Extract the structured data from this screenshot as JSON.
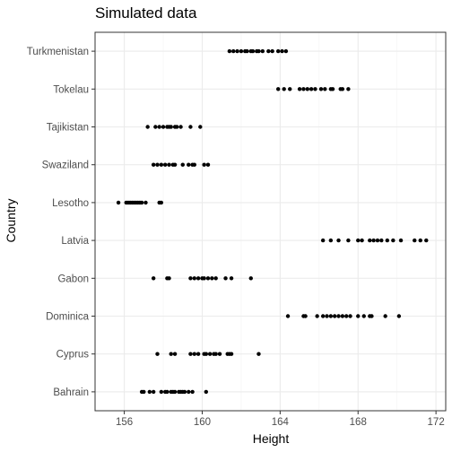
{
  "chart_data": {
    "type": "scatter",
    "title": "Simulated data",
    "xlabel": "Height",
    "ylabel": "Country",
    "xlim": [
      154.5,
      172.5
    ],
    "xticks": [
      156,
      160,
      164,
      168,
      172
    ],
    "xtick_labels": [
      "156",
      "160",
      "164",
      "168",
      "172"
    ],
    "grid": true,
    "categories": [
      "Bahrain",
      "Cyprus",
      "Dominica",
      "Gabon",
      "Latvia",
      "Lesotho",
      "Swaziland",
      "Tajikistan",
      "Tokelau",
      "Turkmenistan"
    ],
    "series": [
      {
        "category": "Bahrain",
        "x": [
          156.9,
          157.0,
          157.3,
          157.5,
          157.9,
          158.1,
          158.2,
          158.4,
          158.5,
          158.6,
          158.8,
          158.9,
          159.0,
          159.1,
          159.3,
          159.5,
          160.2
        ]
      },
      {
        "category": "Cyprus",
        "x": [
          157.7,
          158.4,
          158.6,
          159.4,
          159.6,
          159.8,
          160.1,
          160.2,
          160.4,
          160.6,
          160.7,
          160.9,
          161.3,
          161.4,
          161.5,
          162.9
        ]
      },
      {
        "category": "Dominica",
        "x": [
          164.4,
          165.2,
          165.3,
          165.9,
          166.2,
          166.4,
          166.6,
          166.8,
          167.0,
          167.2,
          167.4,
          167.6,
          168.0,
          168.3,
          168.6,
          168.7,
          169.4,
          170.1
        ]
      },
      {
        "category": "Gabon",
        "x": [
          157.5,
          158.2,
          158.3,
          159.4,
          159.6,
          159.8,
          160.0,
          160.1,
          160.3,
          160.5,
          160.7,
          161.2,
          161.5,
          162.5
        ]
      },
      {
        "category": "Latvia",
        "x": [
          166.2,
          166.6,
          167.0,
          167.5,
          168.0,
          168.2,
          168.6,
          168.8,
          169.0,
          169.2,
          169.5,
          169.8,
          170.2,
          170.9,
          171.2,
          171.5
        ]
      },
      {
        "category": "Lesotho",
        "x": [
          155.7,
          156.1,
          156.2,
          156.3,
          156.4,
          156.5,
          156.6,
          156.7,
          156.8,
          156.9,
          157.1,
          157.8,
          157.9
        ]
      },
      {
        "category": "Swaziland",
        "x": [
          157.5,
          157.7,
          157.9,
          158.1,
          158.3,
          158.5,
          158.6,
          159.0,
          159.3,
          159.5,
          159.6,
          160.1,
          160.3
        ]
      },
      {
        "category": "Tajikistan",
        "x": [
          157.2,
          157.6,
          157.8,
          158.0,
          158.2,
          158.3,
          158.4,
          158.6,
          158.7,
          158.9,
          159.4,
          159.9
        ]
      },
      {
        "category": "Tokelau",
        "x": [
          163.9,
          164.2,
          164.5,
          165.0,
          165.2,
          165.4,
          165.6,
          165.8,
          166.1,
          166.3,
          166.6,
          166.7,
          167.1,
          167.2,
          167.5
        ]
      },
      {
        "category": "Turkmenistan",
        "x": [
          161.4,
          161.6,
          161.8,
          162.0,
          162.2,
          162.3,
          162.5,
          162.6,
          162.8,
          162.9,
          163.1,
          163.4,
          163.6,
          163.9,
          164.1,
          164.3
        ]
      }
    ]
  }
}
